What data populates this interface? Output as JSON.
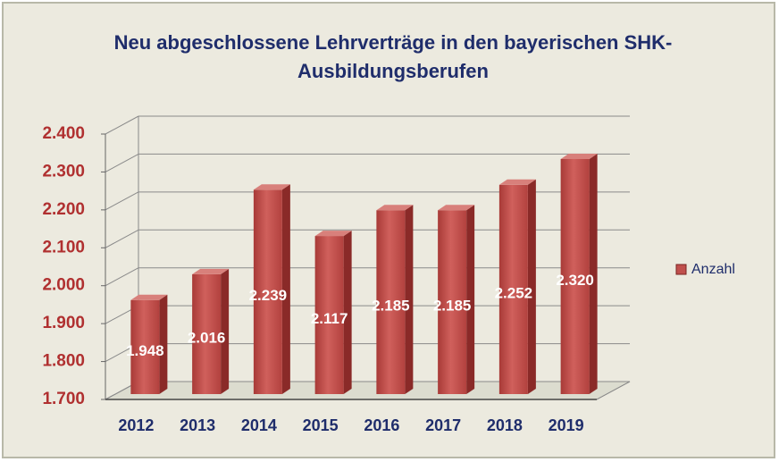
{
  "chart_data": {
    "type": "bar3d",
    "title": "Neu abgeschlossene Lehrverträge in den bayerischen SHK-Ausbildungsberufen",
    "categories": [
      "2012",
      "2013",
      "2014",
      "2015",
      "2016",
      "2017",
      "2018",
      "2019"
    ],
    "series": [
      {
        "name": "Anzahl",
        "color": "#c0504d",
        "values": [
          1948,
          2016,
          2239,
          2117,
          2185,
          2185,
          2252,
          2320
        ],
        "value_labels": [
          "1.948",
          "2.016",
          "2.239",
          "2.117",
          "2.185",
          "2.185",
          "2.252",
          "2.320"
        ]
      }
    ],
    "ylim": [
      1700,
      2400
    ],
    "yticks": [
      {
        "value": 1700,
        "label": "1.700"
      },
      {
        "value": 1800,
        "label": "1.800"
      },
      {
        "value": 1900,
        "label": "1.900"
      },
      {
        "value": 2000,
        "label": "2.000"
      },
      {
        "value": 2100,
        "label": "2.100"
      },
      {
        "value": 2200,
        "label": "2.200"
      },
      {
        "value": 2300,
        "label": "2.300"
      },
      {
        "value": 2400,
        "label": "2.400"
      }
    ],
    "grid": true,
    "legend": "right"
  }
}
